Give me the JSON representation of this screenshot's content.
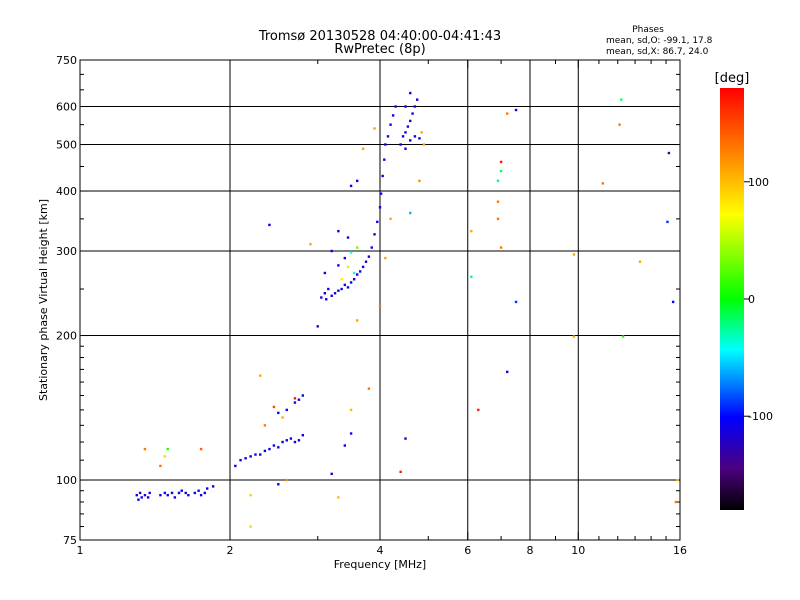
{
  "chart_data": {
    "type": "scatter",
    "title": "Tromsø 20130528 04:40:00-04:41:43",
    "subtitle": "RwPretec (8p)",
    "xlabel": "Frequency [MHz]",
    "ylabel": "Stationary phase Virtual Height [km]",
    "x_scale": "log",
    "y_scale": "log",
    "xlim": [
      1,
      16
    ],
    "ylim": [
      75,
      750
    ],
    "x_ticks": [
      1,
      2,
      4,
      6,
      8,
      10,
      16
    ],
    "x_tick_labels": [
      "1",
      "2",
      "4",
      "6",
      "8",
      "10",
      "16"
    ],
    "x_grid": [
      2,
      4,
      6,
      8,
      10
    ],
    "y_ticks": [
      75,
      100,
      200,
      300,
      400,
      500,
      600,
      750
    ],
    "y_tick_labels": [
      "75",
      "100",
      "200",
      "300",
      "400",
      "500",
      "600",
      "750"
    ],
    "y_grid": [
      100,
      200,
      300,
      400,
      500,
      600
    ],
    "grid": true,
    "legend_box": {
      "title": "Phases",
      "line1": "mean, sd,O:  -99.1, 17.8",
      "line2": "mean, sd,X:  86.7, 24.0"
    },
    "colorbar": {
      "label": "[deg]",
      "range": [
        -180,
        180
      ],
      "ticks": [
        100,
        0,
        -100
      ],
      "tick_labels": [
        "100",
        "0",
        "-100"
      ]
    },
    "points": [
      [
        1.3,
        93,
        -110
      ],
      [
        1.31,
        91,
        -110
      ],
      [
        1.32,
        94,
        -115
      ],
      [
        1.33,
        92,
        -110
      ],
      [
        1.35,
        93,
        -110
      ],
      [
        1.37,
        92,
        -110
      ],
      [
        1.38,
        94,
        -110
      ],
      [
        1.45,
        93,
        -110
      ],
      [
        1.48,
        94,
        -110
      ],
      [
        1.5,
        93,
        -110
      ],
      [
        1.53,
        94,
        -110
      ],
      [
        1.55,
        92,
        -110
      ],
      [
        1.58,
        94,
        -115
      ],
      [
        1.6,
        95,
        -110
      ],
      [
        1.63,
        94,
        -110
      ],
      [
        1.65,
        93,
        -110
      ],
      [
        1.7,
        94,
        -110
      ],
      [
        1.73,
        95,
        -110
      ],
      [
        1.75,
        93,
        -110
      ],
      [
        1.78,
        94,
        -110
      ],
      [
        1.8,
        96,
        -110
      ],
      [
        1.85,
        97,
        -110
      ],
      [
        1.35,
        116,
        130
      ],
      [
        1.45,
        107,
        130
      ],
      [
        1.5,
        116,
        10
      ],
      [
        1.75,
        116,
        140
      ],
      [
        1.48,
        112,
        90
      ],
      [
        2.05,
        107,
        -110
      ],
      [
        2.1,
        110,
        -110
      ],
      [
        2.15,
        111,
        -110
      ],
      [
        2.2,
        112,
        -110
      ],
      [
        2.25,
        113,
        -110
      ],
      [
        2.3,
        113,
        -110
      ],
      [
        2.35,
        115,
        -110
      ],
      [
        2.4,
        116,
        -110
      ],
      [
        2.45,
        118,
        -110
      ],
      [
        2.5,
        117,
        -110
      ],
      [
        2.55,
        120,
        -110
      ],
      [
        2.6,
        121,
        -110
      ],
      [
        2.65,
        122,
        -110
      ],
      [
        2.7,
        120,
        -110
      ],
      [
        2.75,
        121,
        -110
      ],
      [
        2.8,
        124,
        -110
      ],
      [
        2.5,
        138,
        -110
      ],
      [
        2.6,
        140,
        -110
      ],
      [
        2.7,
        145,
        -110
      ],
      [
        2.75,
        147,
        -110
      ],
      [
        2.8,
        150,
        -110
      ],
      [
        2.3,
        165,
        110
      ],
      [
        2.2,
        93,
        90
      ],
      [
        2.35,
        130,
        130
      ],
      [
        2.45,
        142,
        150
      ],
      [
        2.55,
        135,
        110
      ],
      [
        2.6,
        100,
        120
      ],
      [
        2.7,
        148,
        170
      ],
      [
        2.2,
        80,
        90
      ],
      [
        2.5,
        98,
        -110
      ],
      [
        3.2,
        103,
        -110
      ],
      [
        3.4,
        118,
        -110
      ],
      [
        3.5,
        125,
        -110
      ],
      [
        3.5,
        140,
        100
      ],
      [
        3.3,
        92,
        100
      ],
      [
        3.8,
        155,
        130
      ],
      [
        3.0,
        209,
        -120
      ],
      [
        3.05,
        240,
        -110
      ],
      [
        3.1,
        245,
        -110
      ],
      [
        3.12,
        238,
        -110
      ],
      [
        3.15,
        250,
        -110
      ],
      [
        3.2,
        242,
        -110
      ],
      [
        3.25,
        245,
        -110
      ],
      [
        3.3,
        248,
        -110
      ],
      [
        3.35,
        250,
        -110
      ],
      [
        3.4,
        255,
        -110
      ],
      [
        3.45,
        252,
        -110
      ],
      [
        3.5,
        258,
        -110
      ],
      [
        3.55,
        262,
        -110
      ],
      [
        3.6,
        268,
        -110
      ],
      [
        3.65,
        272,
        -110
      ],
      [
        3.7,
        278,
        -110
      ],
      [
        3.75,
        285,
        -110
      ],
      [
        3.8,
        292,
        -110
      ],
      [
        3.85,
        305,
        -110
      ],
      [
        3.9,
        325,
        -110
      ],
      [
        3.95,
        345,
        -110
      ],
      [
        4.0,
        370,
        -110
      ],
      [
        4.02,
        395,
        -110
      ],
      [
        4.05,
        430,
        -110
      ],
      [
        4.08,
        465,
        -110
      ],
      [
        4.1,
        500,
        -110
      ],
      [
        4.15,
        520,
        -110
      ],
      [
        4.2,
        550,
        -110
      ],
      [
        4.25,
        575,
        -110
      ],
      [
        4.3,
        600,
        -110
      ],
      [
        3.3,
        280,
        -110
      ],
      [
        3.4,
        290,
        -110
      ],
      [
        3.5,
        298,
        -40
      ],
      [
        3.6,
        305,
        30
      ],
      [
        3.45,
        278,
        60
      ],
      [
        3.35,
        262,
        80
      ],
      [
        3.55,
        270,
        -40
      ],
      [
        3.45,
        320,
        -110
      ],
      [
        3.5,
        410,
        -110
      ],
      [
        3.6,
        420,
        -110
      ],
      [
        3.3,
        330,
        -110
      ],
      [
        3.2,
        300,
        -110
      ],
      [
        3.1,
        270,
        -110
      ],
      [
        2.9,
        310,
        110
      ],
      [
        2.4,
        340,
        -110
      ],
      [
        3.6,
        215,
        110
      ],
      [
        3.7,
        490,
        110
      ],
      [
        3.9,
        540,
        110
      ],
      [
        4.1,
        290,
        110
      ],
      [
        4.2,
        350,
        110
      ],
      [
        4.4,
        500,
        -110
      ],
      [
        4.45,
        520,
        -110
      ],
      [
        4.5,
        530,
        -110
      ],
      [
        4.55,
        545,
        -110
      ],
      [
        4.6,
        560,
        -110
      ],
      [
        4.65,
        580,
        -110
      ],
      [
        4.7,
        600,
        -110
      ],
      [
        4.75,
        620,
        -110
      ],
      [
        4.5,
        490,
        -110
      ],
      [
        4.6,
        510,
        -110
      ],
      [
        4.7,
        520,
        -110
      ],
      [
        4.8,
        515,
        -110
      ],
      [
        4.5,
        600,
        -110
      ],
      [
        4.6,
        640,
        -110
      ],
      [
        4.85,
        530,
        110
      ],
      [
        4.9,
        500,
        110
      ],
      [
        4.8,
        420,
        120
      ],
      [
        4.6,
        360,
        -60
      ],
      [
        4.5,
        122,
        -110
      ],
      [
        4.4,
        104,
        170
      ],
      [
        4.0,
        230,
        130
      ],
      [
        6.1,
        330,
        110
      ],
      [
        6.1,
        265,
        -20
      ],
      [
        6.3,
        140,
        170
      ],
      [
        7.0,
        460,
        170
      ],
      [
        7.0,
        440,
        -20
      ],
      [
        6.9,
        420,
        -20
      ],
      [
        6.9,
        380,
        130
      ],
      [
        6.9,
        350,
        130
      ],
      [
        7.0,
        305,
        130
      ],
      [
        7.2,
        580,
        130
      ],
      [
        7.5,
        590,
        -110
      ],
      [
        7.5,
        235,
        -90
      ],
      [
        7.2,
        168,
        -110
      ],
      [
        9.8,
        295,
        110
      ],
      [
        9.8,
        199,
        110
      ],
      [
        11.2,
        415,
        130
      ],
      [
        12.1,
        550,
        130
      ],
      [
        12.2,
        620,
        -20
      ],
      [
        12.3,
        199,
        10
      ],
      [
        13.3,
        285,
        110
      ],
      [
        15.2,
        480,
        -130
      ],
      [
        15.1,
        345,
        -90
      ],
      [
        15.5,
        235,
        -100
      ],
      [
        15.7,
        90,
        130
      ],
      [
        15.8,
        100,
        100
      ]
    ]
  }
}
